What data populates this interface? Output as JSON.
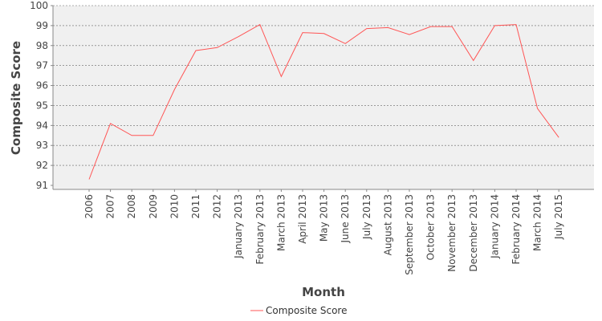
{
  "chart_data": {
    "type": "line",
    "categories": [
      "2006",
      "2007",
      "2008",
      "2009",
      "2010",
      "2011",
      "2012",
      "January 2013",
      "February 2013",
      "March 2013",
      "April 2013",
      "May 2013",
      "June 2013",
      "July 2013",
      "August 2013",
      "September 2013",
      "October 2013",
      "November 2013",
      "December 2013",
      "January 2014",
      "February 2014",
      "March 2014",
      "July 2015"
    ],
    "series": [
      {
        "name": "Composite Score",
        "color": "#ff5555",
        "values": [
          91.3,
          94.1,
          93.5,
          93.5,
          95.8,
          97.75,
          97.9,
          98.45,
          99.05,
          96.45,
          98.65,
          98.6,
          98.1,
          98.85,
          98.9,
          98.55,
          98.95,
          98.95,
          97.25,
          99.0,
          99.05,
          94.85,
          93.4
        ]
      }
    ],
    "xlabel": "Month",
    "ylabel": "Composite Score",
    "ylim": [
      91,
      100
    ],
    "yticks": [
      91,
      92,
      93,
      94,
      95,
      96,
      97,
      98,
      99,
      100
    ],
    "grid": true,
    "legend_position": "bottom"
  }
}
